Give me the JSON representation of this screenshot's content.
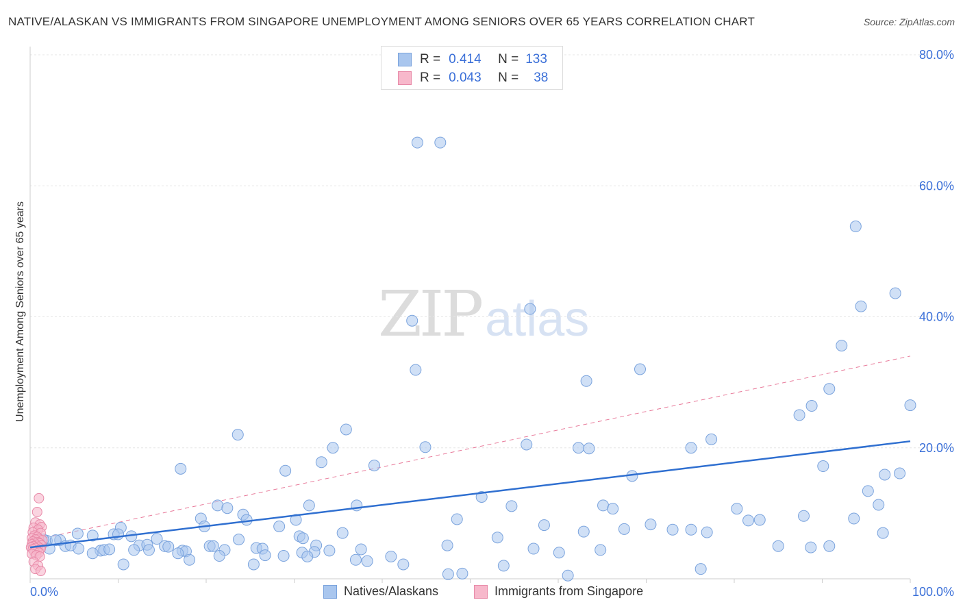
{
  "title": "NATIVE/ALASKAN VS IMMIGRANTS FROM SINGAPORE UNEMPLOYMENT AMONG SENIORS OVER 65 YEARS CORRELATION CHART",
  "source": "Source: ZipAtlas.com",
  "watermark": {
    "zip": "ZIP",
    "atlas": "atlas"
  },
  "legend": {
    "rows": [
      {
        "r_label": "R =",
        "r_value": "0.414",
        "n_label": "N =",
        "n_value": "133"
      },
      {
        "r_label": "R =",
        "r_value": "0.043",
        "n_label": "N =",
        "n_value": "38"
      }
    ]
  },
  "colors": {
    "blue_fill": "#a9c6ee",
    "blue_stroke": "#7aa3dd",
    "blue_line": "#2f6fd0",
    "pink_fill": "#f7b8cb",
    "pink_stroke": "#e88aa8",
    "pink_line": "#e87a9a",
    "axis_text": "#3a6fd8",
    "grid": "#e6e6e6"
  },
  "chart_data": {
    "type": "scatter",
    "title": "NATIVE/ALASKAN VS IMMIGRANTS FROM SINGAPORE UNEMPLOYMENT AMONG SENIORS OVER 65 YEARS CORRELATION CHART",
    "xlabel": "",
    "ylabel": "Unemployment Among Seniors over 65 years",
    "xlim": [
      0,
      100
    ],
    "ylim": [
      0,
      80
    ],
    "x_tick_labels": [
      "0.0%",
      "100.0%"
    ],
    "y_ticks": [
      20,
      40,
      60,
      80
    ],
    "y_tick_labels": [
      "20.0%",
      "40.0%",
      "60.0%",
      "80.0%"
    ],
    "series": [
      {
        "name": "Natives/Alaskans",
        "r": 0.414,
        "n": 133,
        "trend": {
          "x0": 0,
          "y0": 4.8,
          "x1": 100,
          "y1": 21.0,
          "style": "solid"
        },
        "points": [
          [
            44.0,
            66.6
          ],
          [
            46.6,
            66.6
          ],
          [
            93.8,
            53.8
          ],
          [
            98.3,
            43.6
          ],
          [
            94.4,
            41.6
          ],
          [
            56.8,
            41.2
          ],
          [
            43.4,
            39.4
          ],
          [
            92.2,
            35.6
          ],
          [
            43.8,
            31.9
          ],
          [
            69.3,
            32.0
          ],
          [
            63.2,
            30.2
          ],
          [
            90.8,
            29.0
          ],
          [
            100,
            26.5
          ],
          [
            88.8,
            26.4
          ],
          [
            87.4,
            25.0
          ],
          [
            35.9,
            22.8
          ],
          [
            23.6,
            22.0
          ],
          [
            77.4,
            21.3
          ],
          [
            34.4,
            20.0
          ],
          [
            44.9,
            20.1
          ],
          [
            56.4,
            20.5
          ],
          [
            62.3,
            20.0
          ],
          [
            63.5,
            19.9
          ],
          [
            75.1,
            20.0
          ],
          [
            33.1,
            17.8
          ],
          [
            39.1,
            17.3
          ],
          [
            17.1,
            16.8
          ],
          [
            29.0,
            16.5
          ],
          [
            90.1,
            17.2
          ],
          [
            97.1,
            15.9
          ],
          [
            98.8,
            16.1
          ],
          [
            68.4,
            15.7
          ],
          [
            95.2,
            13.4
          ],
          [
            51.3,
            12.5
          ],
          [
            31.7,
            11.2
          ],
          [
            37.1,
            11.2
          ],
          [
            21.3,
            11.2
          ],
          [
            22.4,
            10.8
          ],
          [
            54.7,
            11.1
          ],
          [
            65.1,
            11.2
          ],
          [
            66.2,
            10.7
          ],
          [
            80.3,
            10.7
          ],
          [
            96.4,
            11.3
          ],
          [
            24.2,
            9.8
          ],
          [
            19.4,
            9.2
          ],
          [
            24.6,
            9.0
          ],
          [
            30.2,
            9.0
          ],
          [
            48.5,
            9.1
          ],
          [
            81.6,
            8.9
          ],
          [
            82.9,
            9.0
          ],
          [
            87.9,
            9.6
          ],
          [
            93.6,
            9.2
          ],
          [
            10.3,
            7.8
          ],
          [
            19.8,
            8.0
          ],
          [
            28.3,
            8.0
          ],
          [
            58.4,
            8.2
          ],
          [
            70.5,
            8.3
          ],
          [
            73.0,
            7.5
          ],
          [
            75.1,
            7.5
          ],
          [
            76.9,
            7.1
          ],
          [
            62.9,
            7.2
          ],
          [
            67.5,
            7.6
          ],
          [
            96.9,
            7.0
          ],
          [
            5.4,
            6.9
          ],
          [
            7.1,
            6.6
          ],
          [
            9.5,
            6.8
          ],
          [
            10.0,
            6.8
          ],
          [
            11.5,
            6.5
          ],
          [
            14.4,
            6.1
          ],
          [
            23.7,
            6.0
          ],
          [
            30.6,
            6.5
          ],
          [
            31.0,
            6.2
          ],
          [
            35.5,
            7.0
          ],
          [
            53.1,
            6.3
          ],
          [
            3.4,
            5.9
          ],
          [
            1.1,
            5.5
          ],
          [
            1.9,
            5.8
          ],
          [
            2.9,
            5.9
          ],
          [
            4.0,
            5.0
          ],
          [
            4.6,
            5.1
          ],
          [
            12.4,
            5.1
          ],
          [
            13.3,
            5.2
          ],
          [
            15.3,
            5.0
          ],
          [
            15.7,
            4.9
          ],
          [
            20.4,
            5.0
          ],
          [
            20.8,
            5.0
          ],
          [
            32.5,
            5.1
          ],
          [
            47.4,
            5.1
          ],
          [
            85.0,
            5.0
          ],
          [
            88.7,
            4.8
          ],
          [
            90.8,
            5.0
          ],
          [
            0.4,
            5.0
          ],
          [
            0.7,
            5.5
          ],
          [
            2.2,
            4.6
          ],
          [
            5.5,
            4.6
          ],
          [
            8.0,
            4.3
          ],
          [
            8.4,
            4.4
          ],
          [
            9.0,
            4.5
          ],
          [
            11.8,
            4.4
          ],
          [
            13.5,
            4.4
          ],
          [
            17.3,
            4.3
          ],
          [
            17.7,
            4.2
          ],
          [
            22.1,
            4.4
          ],
          [
            25.7,
            4.7
          ],
          [
            26.4,
            4.6
          ],
          [
            30.9,
            4.0
          ],
          [
            32.3,
            4.1
          ],
          [
            34.0,
            4.3
          ],
          [
            37.6,
            4.5
          ],
          [
            57.2,
            4.6
          ],
          [
            60.1,
            4.0
          ],
          [
            64.8,
            4.4
          ],
          [
            7.1,
            3.9
          ],
          [
            16.8,
            3.9
          ],
          [
            21.5,
            3.5
          ],
          [
            26.7,
            3.6
          ],
          [
            28.8,
            3.5
          ],
          [
            31.5,
            3.4
          ],
          [
            37.0,
            2.9
          ],
          [
            38.3,
            2.7
          ],
          [
            41.0,
            3.4
          ],
          [
            18.1,
            2.9
          ],
          [
            10.6,
            2.2
          ],
          [
            25.4,
            2.2
          ],
          [
            42.4,
            2.2
          ],
          [
            53.8,
            2.0
          ],
          [
            76.2,
            1.5
          ],
          [
            47.5,
            0.7
          ],
          [
            49.1,
            0.8
          ],
          [
            61.1,
            0.5
          ],
          [
            1.5,
            6.0
          ]
        ]
      },
      {
        "name": "Immigrants from Singapore",
        "r": 0.043,
        "n": 38,
        "trend": {
          "x0": 0,
          "y0": 5.8,
          "x1": 100,
          "y1": 34.0,
          "style": "dashed"
        },
        "points": [
          [
            1.0,
            12.3
          ],
          [
            0.8,
            10.2
          ],
          [
            0.6,
            8.6
          ],
          [
            1.1,
            8.3
          ],
          [
            0.4,
            7.8
          ],
          [
            1.3,
            7.9
          ],
          [
            0.9,
            7.5
          ],
          [
            0.3,
            7.1
          ],
          [
            1.2,
            7.0
          ],
          [
            0.5,
            6.6
          ],
          [
            0.8,
            6.4
          ],
          [
            0.2,
            6.2
          ],
          [
            1.0,
            6.1
          ],
          [
            0.6,
            6.0
          ],
          [
            1.4,
            5.9
          ],
          [
            0.3,
            5.7
          ],
          [
            0.9,
            5.6
          ],
          [
            0.5,
            5.5
          ],
          [
            1.1,
            5.4
          ],
          [
            0.2,
            5.3
          ],
          [
            0.7,
            5.2
          ],
          [
            1.3,
            5.1
          ],
          [
            0.4,
            5.0
          ],
          [
            0.9,
            4.9
          ],
          [
            0.1,
            4.8
          ],
          [
            0.6,
            4.7
          ],
          [
            1.2,
            4.6
          ],
          [
            0.3,
            4.5
          ],
          [
            0.8,
            4.3
          ],
          [
            0.5,
            4.1
          ],
          [
            1.0,
            4.0
          ],
          [
            0.2,
            3.8
          ],
          [
            0.7,
            3.6
          ],
          [
            1.1,
            3.4
          ],
          [
            0.4,
            2.6
          ],
          [
            0.9,
            2.0
          ],
          [
            0.6,
            1.5
          ],
          [
            1.2,
            1.2
          ]
        ]
      }
    ]
  }
}
